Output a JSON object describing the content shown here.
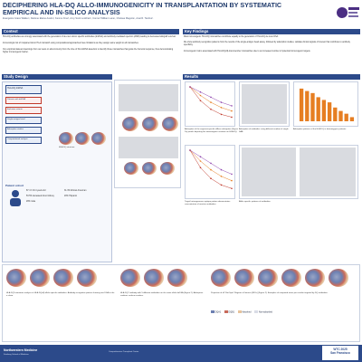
{
  "header": {
    "title_line1": "DECIPHERING HLA-DQ ALLO-IMMUNOGENICITY IN TRANSPLANTATION BY SYSTEMATIC",
    "title_line2": "EMPIRICAL AND IN-SILICO ANALYSIS",
    "authors": "Evangelos Grace Walker¹, Darlene Elaine Austin², Kenme Frau³, Amy Scott Lockhart¹, Connor William Lane¹, Chelsea Maguire¹, Anat R. Tambur¹"
  },
  "sections": {
    "context": "Context",
    "study_design": "Study Design",
    "key_findings": "Key Findings",
    "results": "Results"
  },
  "context": {
    "bullet1": "HLA-DQ antibodies are strongly associated with the generation of de-novo donor specific antibodies (dnDSA) and antibody-mediated rejection (AMR) leading to decreased allograft survival.",
    "bullet2": "Immunologic risk of mispaired donor HLA mismatch using computational approaches have limitations as they assign same weight to all mismatches.",
    "bullet3": "Our empirical data and learnings from our team on allo-immunity from the time of first dnDSA detection to identify those mismatches that guide the humoral response, thus demonstrating higher immunogenic barrier."
  },
  "key_findings": {
    "p1": "Most immunogenic HLA-DQ mismatches contribute equally to the generation of HLA-DQ de-novo DSA.",
    "p2": "We show antibody recognition patterns from the results of the single-antigen bead assay, followed by adsorption studies, validate clinical signals of interest that contribute to antibody specificity.",
    "p3": "Immunogenic risk is associated with HLA-DQα/β-transmember mismatches due to an increased number of potential immunogenic targets."
  },
  "study_design": {
    "dsa_label": "HLA-DQ dnDSA",
    "criteria": [
      "Patients with dnDSA",
      "Exclusion criteria",
      "Single-antigen bead",
      "Adsorption studies",
      "Computational analysis"
    ],
    "cohort_title": "Patient cohort",
    "cohort_stats": [
      "87.4 ± 19.4 years old",
      "53.5% deceased donor kidney",
      "29% male",
      "31.3% African American",
      "20% Hispanic"
    ],
    "icons_label": "HLA-DQ structure"
  },
  "results": {
    "fig_a": "Adsorption of the segment-specific diffuse adsorption (Figure 2a) panels depicting the immunogenic residues on HLA-DQ.",
    "fig_b": "Adsorption of antibodies using different number of single SAB.",
    "fig_c": "Target heterogeneous epitope pattern demonstrates concentration of reactive antibodies.",
    "fig_d": "Adsorption patterns of the HLA-DQ in heterozygous patients.",
    "fig_e": "Allele specific patterns of antibodies",
    "bottom1": "HLA-DQ5 monomer analysis of HLA-DQα/β allele-specific antibodies. Antibody recognition pattern showing one DSA as the α chain.",
    "bottom2": "HLA-DQ7 antibody with 5 different antibodies on the same allele dnDSA (Figure 2). Adsorption confirms surface residues.",
    "bottom3": "Projection of all “Hot Spot” Regions of Interest (ROIs) (Figure 2). Examples of computed areas per residue targeted by DQ antibodies.",
    "legend_items": [
      "DQA1",
      "DQB1",
      "Adsorbed",
      "Non-adsorbed"
    ]
  },
  "footer": {
    "institution": "Northwestern Medicine",
    "dept": "Feinberg School of Medicine",
    "small": "Comprehensive Transplant Center",
    "conf_line1": "WTC 2025",
    "conf_line2": "San Francisco"
  },
  "chart_data": [
    {
      "type": "line",
      "title": "",
      "series": [
        {
          "name": "",
          "values": [
            100,
            60,
            35,
            20,
            12
          ]
        },
        {
          "name": "",
          "values": [
            100,
            75,
            55,
            40,
            30
          ]
        },
        {
          "name": "",
          "values": [
            100,
            85,
            70,
            55,
            45
          ]
        }
      ],
      "categories": [
        "1",
        "2",
        "3",
        "4",
        "5"
      ],
      "color": "#c0392b"
    },
    {
      "type": "bar",
      "title": "",
      "categories": [
        "1",
        "2",
        "3",
        "4",
        "5",
        "6",
        "7",
        "8",
        "9",
        "10"
      ],
      "values": [
        95,
        88,
        82,
        70,
        62,
        55,
        40,
        30,
        22,
        12
      ],
      "color": "#e67e22"
    }
  ]
}
